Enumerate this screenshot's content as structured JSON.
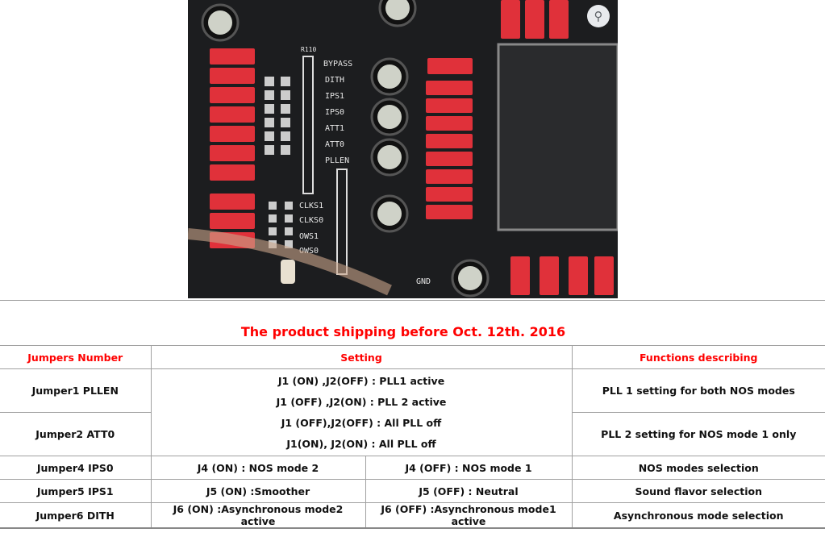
{
  "photo": {
    "labels": [
      "R110",
      "BYPASS",
      "DITH",
      "IPS1",
      "IPS0",
      "ATT1",
      "ATT0",
      "PLLEN",
      "CLKS1",
      "CLKS0",
      "OWS1",
      "OWS0",
      "GND"
    ],
    "lens_icon": "lens-search-icon"
  },
  "title": "The product shipping before Oct. 12th. 2016",
  "table": {
    "headers": [
      "Jumpers Number",
      "Setting",
      "Functions describing"
    ],
    "pll_settings": [
      "J1 (ON) ,J2(OFF) :  PLL1 active",
      "J1 (OFF) ,J2(ON) : PLL 2 active",
      "J1 (OFF),J2(OFF) :    All PLL off",
      "J1(ON), J2(ON)    :    All PLL off"
    ],
    "rows": [
      {
        "jumper": "Jumper1  PLLEN",
        "function": "PLL 1 setting for both NOS modes"
      },
      {
        "jumper": "Jumper2  ATT0",
        "function": "PLL 2 setting for  NOS mode 1 only"
      },
      {
        "jumper": "Jumper4  IPS0",
        "on": "J4 (ON) : NOS mode 2",
        "off": "J4 (OFF) : NOS mode 1",
        "function": "NOS modes selection"
      },
      {
        "jumper": "Jumper5  IPS1",
        "on": "J5 (ON) :Smoother",
        "off": "J5 (OFF) : Neutral",
        "function": "Sound flavor selection"
      },
      {
        "jumper": "Jumper6  DITH",
        "on": "J6 (ON) :Asynchronous mode2  active",
        "off": "J6 (OFF) :Asynchronous mode1 active",
        "function": "Asynchronous  mode selection"
      }
    ]
  },
  "colors": {
    "accent": "#ff0000",
    "pcb": "#1c1d1f",
    "resistor": "#e0313a"
  }
}
